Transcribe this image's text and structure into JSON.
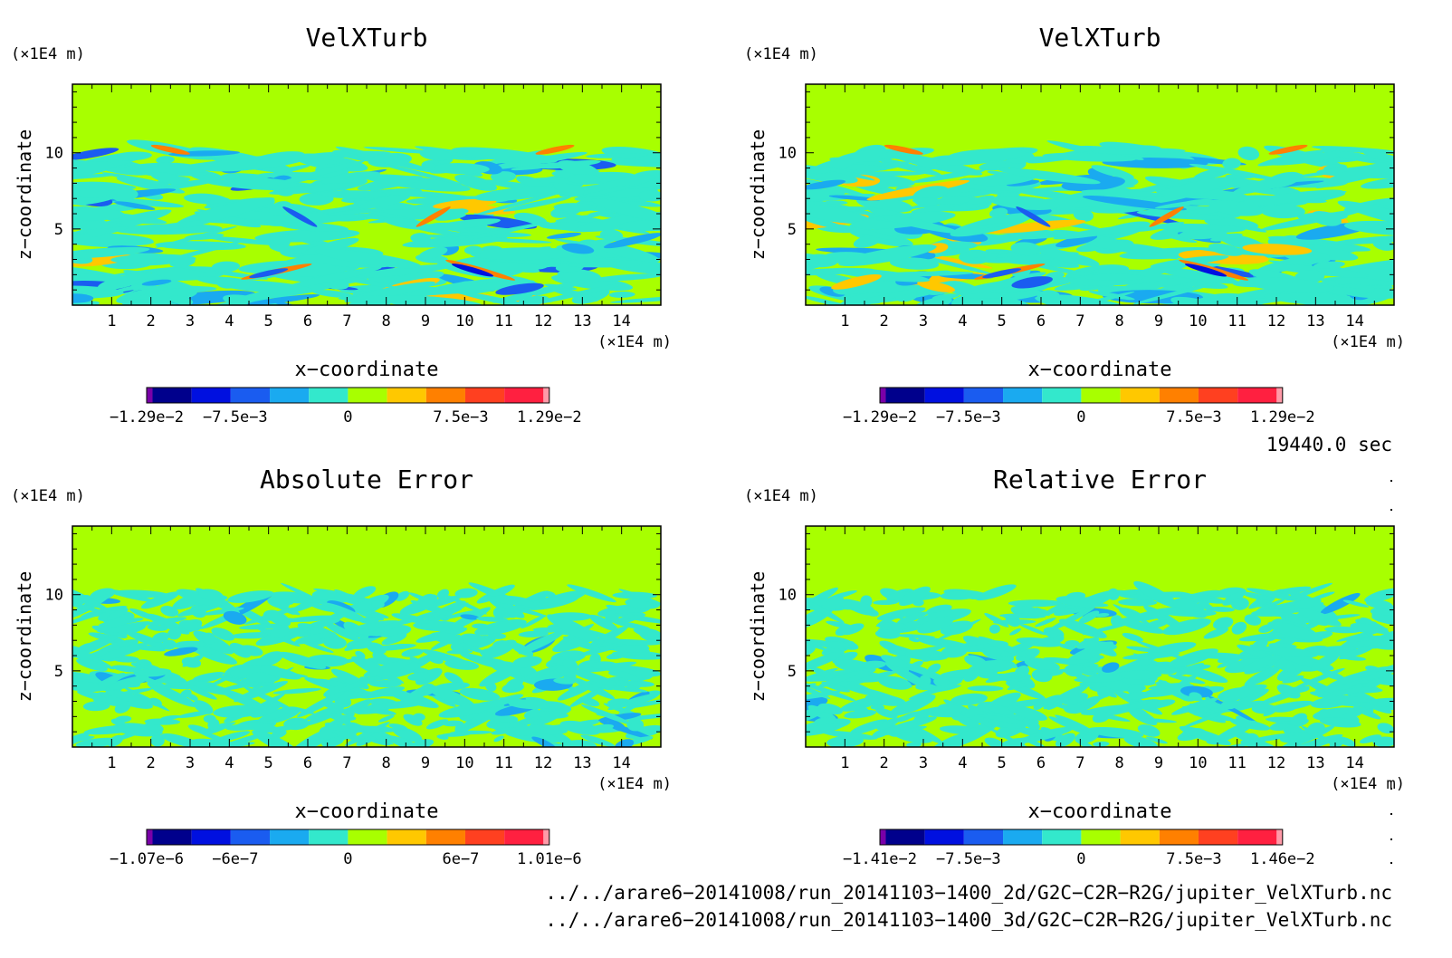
{
  "axis_unit": "(×1E4 m)",
  "x_label": "x−coordinate",
  "z_label": "z−coordinate",
  "time_label": "19440.0 sec",
  "files": [
    "../../arare6−20141008/run_20141103−1400_2d/G2C−C2R−R2G/jupiter_VelXTurb.nc",
    "../../arare6−20141008/run_20141103−1400_3d/G2C−C2R−R2G/jupiter_VelXTurb.nc"
  ],
  "colors": {
    "background_field": "#a8ff00",
    "cyan": "#33e8cc",
    "light_blue": "#1aaaf0",
    "blue": "#1a5cf0",
    "deep_blue": "#0010e0",
    "navy": "#00008c",
    "purple": "#7a00a8",
    "yellow": "#ffc800",
    "orange": "#ff8000",
    "red_orange": "#ff4020",
    "red": "#ff2040",
    "pink": "#ff9aa8"
  },
  "chart_data": [
    {
      "type": "heatmap",
      "title": "VelXTurb",
      "xlabel": "x−coordinate",
      "ylabel": "z−coordinate",
      "x_unit": "(×1E4 m)",
      "y_unit": "(×1E4 m)",
      "xlim": [
        0,
        15
      ],
      "ylim": [
        0,
        14.5
      ],
      "x_ticks": [
        1,
        2,
        3,
        4,
        5,
        6,
        7,
        8,
        9,
        10,
        11,
        12,
        13,
        14
      ],
      "y_ticks": [
        5,
        10
      ],
      "colorbar_labels": [
        "−1.29e−2",
        "−7.5e−3",
        "0",
        "7.5e−3",
        "1.29e−2"
      ],
      "colorbar_range": [
        -0.0129,
        0.0129
      ]
    },
    {
      "type": "heatmap",
      "title": "VelXTurb",
      "xlabel": "x−coordinate",
      "ylabel": "z−coordinate",
      "x_unit": "(×1E4 m)",
      "y_unit": "(×1E4 m)",
      "xlim": [
        0,
        15
      ],
      "ylim": [
        0,
        14.5
      ],
      "x_ticks": [
        1,
        2,
        3,
        4,
        5,
        6,
        7,
        8,
        9,
        10,
        11,
        12,
        13,
        14
      ],
      "y_ticks": [
        5,
        10
      ],
      "colorbar_labels": [
        "−1.29e−2",
        "−7.5e−3",
        "0",
        "7.5e−3",
        "1.29e−2"
      ],
      "colorbar_range": [
        -0.0129,
        0.0129
      ]
    },
    {
      "type": "heatmap",
      "title": "Absolute Error",
      "xlabel": "x−coordinate",
      "ylabel": "z−coordinate",
      "x_unit": "(×1E4 m)",
      "y_unit": "(×1E4 m)",
      "xlim": [
        0,
        15
      ],
      "ylim": [
        0,
        14.5
      ],
      "x_ticks": [
        1,
        2,
        3,
        4,
        5,
        6,
        7,
        8,
        9,
        10,
        11,
        12,
        13,
        14
      ],
      "y_ticks": [
        5,
        10
      ],
      "colorbar_labels": [
        "−1.07e−6",
        "−6e−7",
        "0",
        "6e−7",
        "1.01e−6"
      ],
      "colorbar_range": [
        -1.07e-06,
        1.01e-06
      ]
    },
    {
      "type": "heatmap",
      "title": "Relative Error",
      "xlabel": "x−coordinate",
      "ylabel": "z−coordinate",
      "x_unit": "(×1E4 m)",
      "y_unit": "(×1E4 m)",
      "xlim": [
        0,
        15
      ],
      "ylim": [
        0,
        14.5
      ],
      "x_ticks": [
        1,
        2,
        3,
        4,
        5,
        6,
        7,
        8,
        9,
        10,
        11,
        12,
        13,
        14
      ],
      "y_ticks": [
        5,
        10
      ],
      "colorbar_labels": [
        "−1.41e−2",
        "−7.5e−3",
        "0",
        "7.5e−3",
        "1.46e−2"
      ],
      "colorbar_range": [
        -0.0141,
        0.0146
      ]
    }
  ]
}
